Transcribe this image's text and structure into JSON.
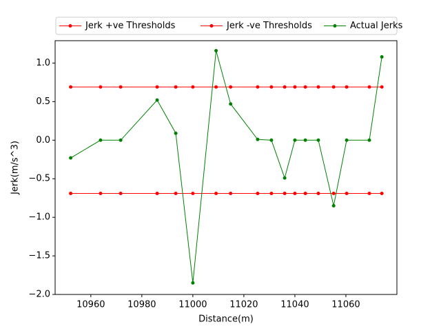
{
  "chart_data": {
    "type": "line",
    "xlabel": "Distance(m)",
    "ylabel": "Jerk(m/s^3)",
    "x": [
      10952.1,
      10963.8,
      10971.7,
      10986.0,
      10993.3,
      11000.0,
      11009.1,
      11014.8,
      11025.4,
      11030.8,
      11036.0,
      11040.0,
      11044.1,
      11049.2,
      11055.2,
      11060.3,
      11069.2,
      11074.1
    ],
    "series": [
      {
        "name": "Jerk +ve Thresholds",
        "color": "#ff0000",
        "values": [
          0.69,
          0.69,
          0.69,
          0.69,
          0.69,
          0.69,
          0.69,
          0.69,
          0.69,
          0.69,
          0.69,
          0.69,
          0.69,
          0.69,
          0.69,
          0.69,
          0.69,
          0.69
        ]
      },
      {
        "name": "Jerk -ve Thresholds",
        "color": "#ff0000",
        "values": [
          -0.69,
          -0.69,
          -0.69,
          -0.69,
          -0.69,
          -0.69,
          -0.69,
          -0.69,
          -0.69,
          -0.69,
          -0.69,
          -0.69,
          -0.69,
          -0.69,
          -0.69,
          -0.69,
          -0.69,
          -0.69
        ]
      },
      {
        "name": "Actual Jerks",
        "color": "#008000",
        "values": [
          -0.23,
          0,
          0,
          0.52,
          0.09,
          -1.85,
          1.16,
          0.47,
          0.01,
          0,
          -0.49,
          0,
          0,
          0,
          -0.85,
          0,
          0,
          1.08
        ]
      }
    ],
    "xlim": [
      10946,
      11080
    ],
    "ylim": [
      -2.0,
      1.29
    ],
    "xticks": [
      10960,
      10980,
      11000,
      11020,
      11040,
      11060
    ],
    "yticks": [
      {
        "value": -2.0,
        "label": "−2.0"
      },
      {
        "value": -1.5,
        "label": "−1.5"
      },
      {
        "value": -1.0,
        "label": "−1.0"
      },
      {
        "value": -0.5,
        "label": "−0.5"
      },
      {
        "value": 0.0,
        "label": "0.0"
      },
      {
        "value": 0.5,
        "label": "0.5"
      },
      {
        "value": 1.0,
        "label": "1.0"
      }
    ],
    "legend": "upper center",
    "grid": false
  }
}
